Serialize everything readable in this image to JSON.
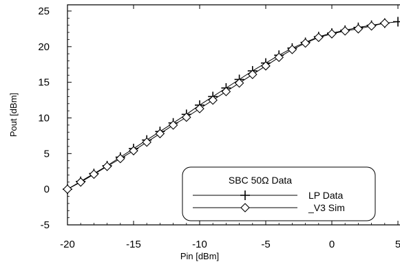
{
  "chart_data": {
    "type": "line",
    "xlabel": "Pin [dBm]",
    "ylabel": "Pout [dBm]",
    "xlim": [
      -20,
      5
    ],
    "ylim": [
      -5,
      25
    ],
    "xticks": [
      -20,
      -15,
      -10,
      -5,
      0,
      5
    ],
    "yticks": [
      -5,
      0,
      5,
      10,
      15,
      20,
      25
    ],
    "grid": false,
    "legend": {
      "title": "SBC 50Ω Data",
      "placement": "bottom-right",
      "entries": [
        "LP Data",
        "_V3 Sim"
      ]
    },
    "series": [
      {
        "name": "LP Data",
        "marker": "plus",
        "x": [
          -20,
          -19,
          -18,
          -17,
          -16,
          -15,
          -14,
          -13,
          -12,
          -11,
          -10,
          -9,
          -8,
          -7,
          -6,
          -5,
          -4,
          -3,
          -2,
          -1,
          0,
          1,
          2,
          3,
          4,
          5
        ],
        "y": [
          0.0,
          1.1,
          2.2,
          3.3,
          4.5,
          5.7,
          6.9,
          8.1,
          9.3,
          10.5,
          11.8,
          13.0,
          14.2,
          15.4,
          16.6,
          17.7,
          18.8,
          19.8,
          20.6,
          21.4,
          21.9,
          22.3,
          22.7,
          23.0,
          23.3,
          23.5
        ]
      },
      {
        "name": "_V3 Sim",
        "marker": "diamond",
        "x": [
          -20,
          -19,
          -18,
          -17,
          -16,
          -15,
          -14,
          -13,
          -12,
          -11,
          -10,
          -9,
          -8,
          -7,
          -6,
          -5,
          -4,
          -3,
          -2,
          -1,
          0,
          1,
          2,
          3,
          4
        ],
        "y": [
          0.0,
          1.0,
          2.1,
          3.2,
          4.3,
          5.4,
          6.6,
          7.8,
          9.0,
          10.1,
          11.3,
          12.5,
          13.7,
          14.9,
          16.1,
          17.3,
          18.5,
          19.6,
          20.5,
          21.3,
          21.8,
          22.2,
          22.5,
          22.9,
          23.3
        ]
      }
    ]
  }
}
